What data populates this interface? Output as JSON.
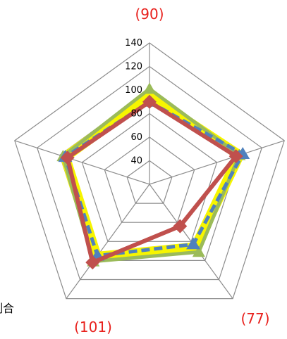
{
  "chart_data": {
    "type": "radar",
    "axes_count": 5,
    "range": [
      20,
      140
    ],
    "rings": [
      40,
      60,
      80,
      100,
      120,
      140
    ],
    "tick_labels": [
      "40",
      "60",
      "80",
      "100",
      "120",
      "140"
    ],
    "axis_callouts": [
      {
        "text": "(90)",
        "axis": 0
      },
      {
        "text": "(77)",
        "axis": 2
      },
      {
        "text": "(101)",
        "axis": 3
      }
    ],
    "partial_label": "割合",
    "colors": {
      "grid": "#8c8c8c",
      "callout": "#e8201c",
      "yellow": "#f7f500",
      "green": "#9bbb59",
      "blue": "#4f81bd",
      "red": "#c0504d"
    },
    "series": [
      {
        "style": "yellow-band",
        "values": [
          95,
          100,
          86,
          96,
          95
        ]
      },
      {
        "style": "green",
        "values": [
          101,
          100,
          91,
          101,
          97
        ]
      },
      {
        "style": "blue-dashed",
        "values": [
          90,
          103,
          83,
          95,
          95
        ]
      },
      {
        "style": "red",
        "values": [
          90,
          97,
          64,
          102,
          93
        ]
      }
    ]
  }
}
